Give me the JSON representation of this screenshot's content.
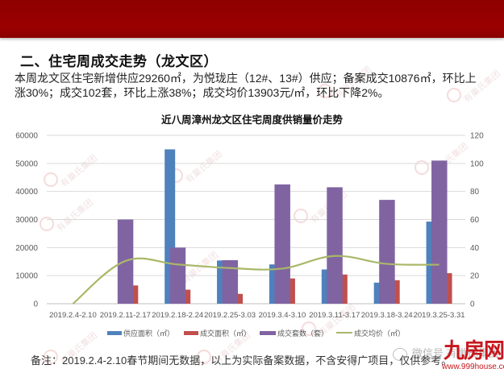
{
  "header": {
    "section_title": "二、住宅周成交走势（龙文区）",
    "summary_lines": [
      "本周龙文区住宅新增供应29260㎡，为悦珑庄（12#、13#）供应；备案成交10876㎡，环比上",
      "涨30%；成交102套，环比上涨38%；成交均价13903元/㎡，环比下降2%。"
    ]
  },
  "watermark_text": "有巢氏集团",
  "colors": {
    "header_band": "#950000",
    "supply_area": "#4F81BD",
    "deal_area": "#C0504D",
    "deal_units": "#8064A2",
    "avg_price": "#A9B868",
    "grid": "#D9D9D9",
    "axis_text": "#595959"
  },
  "chart_data": {
    "type": "bar",
    "title": "近八周漳州龙文区住宅周度供销量价走势",
    "categories": [
      "2019.2.4-2.10",
      "2019.2.11-2.17",
      "2019.2.18-2.24",
      "2019.2.25-3.03",
      "2019.3.4-3.10",
      "2019.3.11-3.17",
      "2019.3.18-3.24",
      "2019.3.25-3.31"
    ],
    "series": [
      {
        "name": "供应面积（㎡）",
        "type": "bar",
        "axis": "left",
        "values": [
          0,
          0,
          55000,
          15400,
          14000,
          12200,
          7500,
          29260
        ]
      },
      {
        "name": "成交面积（㎡）",
        "type": "bar",
        "axis": "left",
        "values": [
          0,
          6500,
          5000,
          3500,
          9000,
          10400,
          8370,
          10876
        ]
      },
      {
        "name": "成交套数（套）",
        "type": "bar",
        "axis": "right",
        "values": [
          0,
          60,
          40,
          31,
          85,
          83,
          74,
          102
        ]
      },
      {
        "name": "成交均价（㎡）",
        "type": "line",
        "axis": "left",
        "values": [
          0,
          15200,
          14000,
          12700,
          12500,
          17000,
          14200,
          13903
        ]
      }
    ],
    "left_axis": {
      "min": 0,
      "max": 60000,
      "step": 10000,
      "ticks": [
        "0",
        "10000",
        "20000",
        "30000",
        "40000",
        "50000",
        "60000"
      ]
    },
    "right_axis": {
      "min": 0,
      "max": 120,
      "step": 20,
      "ticks": [
        "0",
        "20",
        "40",
        "60",
        "80",
        "100",
        "120"
      ]
    },
    "grid": true,
    "legend_position": "bottom",
    "xlabel": "",
    "ylabel": ""
  },
  "footer": {
    "note": "备注：2019.2.4-2.10春节期间无数据，以上为实际备案数据，不含安得广项目，仅供参考。",
    "wechat_watermark": "微信号 有巢氏集团",
    "brand_name": "九房网",
    "brand_url": "www.999house.com"
  }
}
